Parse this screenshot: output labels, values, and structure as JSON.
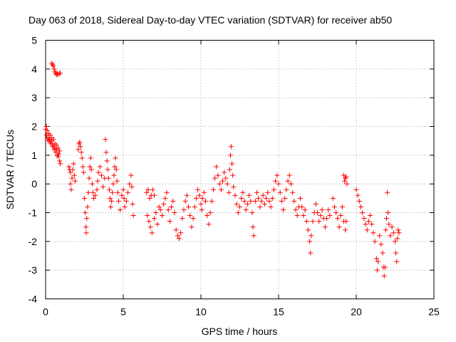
{
  "chart_data": {
    "type": "scatter",
    "title": "Day 063 of 2018, Sidereal Day-to-day VTEC variation (SDTVAR) for receiver ab50",
    "xlabel": "GPS time / hours",
    "ylabel": "SDTVAR / TECUs",
    "xlim": [
      0,
      25
    ],
    "ylim": [
      -4,
      5
    ],
    "x_ticks": [
      0,
      5,
      10,
      15,
      20,
      25
    ],
    "y_ticks": [
      -4,
      -3,
      -2,
      -1,
      0,
      1,
      2,
      3,
      4,
      5
    ],
    "x_tick_labels": [
      "0",
      "5",
      "10",
      "15",
      "20",
      "25"
    ],
    "y_tick_labels": [
      "-4",
      "-3",
      "-2",
      "-1",
      "0",
      "1",
      "2",
      "3",
      "4",
      "5"
    ],
    "grid": true,
    "marker": "+",
    "color": "#ff0000",
    "series": [
      {
        "name": "SDTVAR",
        "points": [
          [
            0.0,
            1.9
          ],
          [
            0.05,
            1.7
          ],
          [
            0.1,
            1.6
          ],
          [
            0.15,
            1.5
          ],
          [
            0.2,
            1.6
          ],
          [
            0.25,
            1.55
          ],
          [
            0.3,
            1.45
          ],
          [
            0.35,
            1.4
          ],
          [
            0.4,
            1.5
          ],
          [
            0.45,
            1.3
          ],
          [
            0.5,
            1.35
          ],
          [
            0.55,
            1.2
          ],
          [
            0.6,
            1.25
          ],
          [
            0.65,
            1.1
          ],
          [
            0.7,
            1.2
          ],
          [
            0.75,
            1.0
          ],
          [
            0.8,
            0.95
          ],
          [
            0.85,
            1.05
          ],
          [
            0.9,
            0.8
          ],
          [
            0.95,
            0.7
          ],
          [
            0.05,
            2.0
          ],
          [
            0.1,
            1.85
          ],
          [
            0.2,
            1.75
          ],
          [
            0.3,
            1.7
          ],
          [
            0.4,
            1.6
          ],
          [
            0.5,
            1.55
          ],
          [
            0.6,
            1.4
          ],
          [
            0.7,
            1.35
          ],
          [
            0.8,
            1.25
          ],
          [
            0.9,
            1.15
          ],
          [
            0.4,
            4.2
          ],
          [
            0.45,
            4.15
          ],
          [
            0.5,
            4.1
          ],
          [
            0.55,
            4.0
          ],
          [
            0.6,
            3.9
          ],
          [
            0.65,
            3.85
          ],
          [
            0.7,
            3.8
          ],
          [
            0.75,
            3.85
          ],
          [
            0.8,
            3.8
          ],
          [
            0.9,
            3.85
          ],
          [
            0.95,
            3.85
          ],
          [
            1.5,
            0.6
          ],
          [
            1.55,
            0.5
          ],
          [
            1.6,
            0.4
          ],
          [
            1.6,
            0.0
          ],
          [
            1.65,
            -0.2
          ],
          [
            1.7,
            0.2
          ],
          [
            1.75,
            0.5
          ],
          [
            1.8,
            0.7
          ],
          [
            1.85,
            0.3
          ],
          [
            1.9,
            0.1
          ],
          [
            2.1,
            1.2
          ],
          [
            2.15,
            1.4
          ],
          [
            2.2,
            1.45
          ],
          [
            2.25,
            1.3
          ],
          [
            2.3,
            1.1
          ],
          [
            2.35,
            0.9
          ],
          [
            2.4,
            0.6
          ],
          [
            2.45,
            0.4
          ],
          [
            2.5,
            -0.5
          ],
          [
            2.55,
            -1.0
          ],
          [
            2.6,
            -1.5
          ],
          [
            2.62,
            -1.7
          ],
          [
            2.65,
            -1.2
          ],
          [
            2.7,
            -0.8
          ],
          [
            2.75,
            -0.3
          ],
          [
            2.8,
            0.2
          ],
          [
            2.85,
            0.6
          ],
          [
            2.9,
            0.9
          ],
          [
            2.95,
            0.5
          ],
          [
            3.0,
            0.0
          ],
          [
            3.05,
            -0.3
          ],
          [
            3.1,
            -0.5
          ],
          [
            3.2,
            -0.4
          ],
          [
            3.3,
            -0.2
          ],
          [
            3.35,
            0.1
          ],
          [
            3.4,
            0.4
          ],
          [
            3.5,
            0.6
          ],
          [
            3.6,
            0.3
          ],
          [
            3.7,
            -0.1
          ],
          [
            3.8,
            0.2
          ],
          [
            3.85,
            1.55
          ],
          [
            3.9,
            1.1
          ],
          [
            3.95,
            0.8
          ],
          [
            4.0,
            0.5
          ],
          [
            4.05,
            0.2
          ],
          [
            4.1,
            -0.2
          ],
          [
            4.15,
            -0.5
          ],
          [
            4.2,
            -0.8
          ],
          [
            4.25,
            -0.6
          ],
          [
            4.3,
            -0.3
          ],
          [
            4.35,
            0.0
          ],
          [
            4.4,
            0.3
          ],
          [
            4.45,
            0.6
          ],
          [
            4.5,
            0.9
          ],
          [
            4.55,
            0.5
          ],
          [
            4.6,
            0.1
          ],
          [
            4.65,
            -0.3
          ],
          [
            4.7,
            -0.6
          ],
          [
            4.8,
            -0.9
          ],
          [
            4.9,
            -0.4
          ],
          [
            5.0,
            -0.2
          ],
          [
            5.05,
            -0.5
          ],
          [
            5.1,
            -0.8
          ],
          [
            5.2,
            -0.6
          ],
          [
            5.3,
            -0.3
          ],
          [
            5.4,
            0.0
          ],
          [
            5.5,
            0.3
          ],
          [
            5.55,
            -0.1
          ],
          [
            5.6,
            -0.7
          ],
          [
            5.65,
            -1.1
          ],
          [
            6.5,
            -0.3
          ],
          [
            6.6,
            -0.2
          ],
          [
            6.7,
            -0.5
          ],
          [
            6.8,
            -0.4
          ],
          [
            6.9,
            -0.2
          ],
          [
            7.0,
            -0.4
          ],
          [
            6.55,
            -1.1
          ],
          [
            6.65,
            -1.3
          ],
          [
            6.75,
            -1.5
          ],
          [
            6.85,
            -1.7
          ],
          [
            7.0,
            -1.2
          ],
          [
            7.1,
            -1.0
          ],
          [
            7.2,
            -1.4
          ],
          [
            7.3,
            -0.8
          ],
          [
            7.4,
            -0.9
          ],
          [
            7.5,
            -1.1
          ],
          [
            7.6,
            -0.7
          ],
          [
            7.7,
            -0.5
          ],
          [
            7.8,
            -0.3
          ],
          [
            7.9,
            -0.9
          ],
          [
            8.0,
            -1.3
          ],
          [
            8.1,
            -0.8
          ],
          [
            8.2,
            -0.6
          ],
          [
            8.3,
            -1.0
          ],
          [
            8.4,
            -1.6
          ],
          [
            8.5,
            -1.8
          ],
          [
            8.6,
            -1.9
          ],
          [
            8.7,
            -1.7
          ],
          [
            8.8,
            -1.2
          ],
          [
            8.9,
            -0.9
          ],
          [
            9.0,
            -0.6
          ],
          [
            9.1,
            -0.4
          ],
          [
            9.2,
            -0.8
          ],
          [
            9.3,
            -1.1
          ],
          [
            9.4,
            -1.5
          ],
          [
            9.5,
            -1.2
          ],
          [
            9.6,
            -0.8
          ],
          [
            9.7,
            -0.5
          ],
          [
            9.8,
            -0.2
          ],
          [
            9.9,
            -0.4
          ],
          [
            10.0,
            -0.7
          ],
          [
            10.05,
            -0.9
          ],
          [
            10.1,
            -0.5
          ],
          [
            10.2,
            -0.3
          ],
          [
            10.3,
            -0.6
          ],
          [
            10.4,
            -1.1
          ],
          [
            10.5,
            -1.4
          ],
          [
            10.6,
            -1.0
          ],
          [
            10.7,
            -0.6
          ],
          [
            10.8,
            -0.2
          ],
          [
            10.9,
            0.2
          ],
          [
            11.0,
            0.6
          ],
          [
            11.1,
            0.3
          ],
          [
            11.2,
            0.0
          ],
          [
            11.3,
            -0.2
          ],
          [
            11.4,
            0.1
          ],
          [
            11.5,
            0.4
          ],
          [
            11.6,
            0.2
          ],
          [
            11.7,
            0.0
          ],
          [
            11.8,
            -0.3
          ],
          [
            11.85,
            0.5
          ],
          [
            11.9,
            1.0
          ],
          [
            11.95,
            1.3
          ],
          [
            12.0,
            0.7
          ],
          [
            12.05,
            0.3
          ],
          [
            12.1,
            -0.1
          ],
          [
            12.2,
            -0.4
          ],
          [
            12.3,
            -0.7
          ],
          [
            12.4,
            -1.0
          ],
          [
            12.5,
            -0.8
          ],
          [
            12.6,
            -0.5
          ],
          [
            12.7,
            -0.3
          ],
          [
            12.8,
            -0.6
          ],
          [
            12.9,
            -0.9
          ],
          [
            13.0,
            -0.7
          ],
          [
            13.1,
            -0.4
          ],
          [
            13.2,
            -0.6
          ],
          [
            13.3,
            -1.0
          ],
          [
            13.35,
            -1.5
          ],
          [
            13.4,
            -1.8
          ],
          [
            13.5,
            -0.6
          ],
          [
            13.6,
            -0.3
          ],
          [
            13.7,
            -0.5
          ],
          [
            13.8,
            -0.8
          ],
          [
            13.9,
            -0.6
          ],
          [
            14.0,
            -0.4
          ],
          [
            14.1,
            -0.7
          ],
          [
            14.2,
            -0.5
          ],
          [
            14.3,
            -0.3
          ],
          [
            14.4,
            -0.6
          ],
          [
            14.5,
            -0.8
          ],
          [
            14.6,
            -0.5
          ],
          [
            14.7,
            -0.2
          ],
          [
            14.8,
            0.1
          ],
          [
            14.9,
            0.3
          ],
          [
            15.0,
            0.0
          ],
          [
            15.1,
            -0.3
          ],
          [
            15.2,
            -0.6
          ],
          [
            15.3,
            -0.9
          ],
          [
            15.4,
            -0.5
          ],
          [
            15.5,
            -0.2
          ],
          [
            15.6,
            0.1
          ],
          [
            15.7,
            0.3
          ],
          [
            15.8,
            0.0
          ],
          [
            15.9,
            -0.3
          ],
          [
            16.0,
            -0.6
          ],
          [
            16.1,
            -0.9
          ],
          [
            16.2,
            -1.1
          ],
          [
            16.3,
            -0.8
          ],
          [
            16.4,
            -0.5
          ],
          [
            16.5,
            -0.8
          ],
          [
            16.6,
            -1.1
          ],
          [
            16.7,
            -0.9
          ],
          [
            16.8,
            -1.3
          ],
          [
            16.9,
            -1.6
          ],
          [
            17.0,
            -2.0
          ],
          [
            17.05,
            -2.4
          ],
          [
            17.1,
            -1.8
          ],
          [
            17.2,
            -1.3
          ],
          [
            17.3,
            -1.0
          ],
          [
            17.4,
            -0.7
          ],
          [
            17.5,
            -1.0
          ],
          [
            17.6,
            -1.3
          ],
          [
            17.7,
            -1.1
          ],
          [
            17.8,
            -0.9
          ],
          [
            17.9,
            -1.2
          ],
          [
            18.0,
            -1.5
          ],
          [
            18.1,
            -1.2
          ],
          [
            18.2,
            -0.9
          ],
          [
            18.3,
            -1.1
          ],
          [
            18.5,
            -0.5
          ],
          [
            18.6,
            -0.8
          ],
          [
            18.7,
            -1.0
          ],
          [
            18.8,
            -1.2
          ],
          [
            18.9,
            -1.5
          ],
          [
            19.0,
            -1.1
          ],
          [
            19.1,
            -0.8
          ],
          [
            19.2,
            -1.3
          ],
          [
            19.3,
            -1.6
          ],
          [
            19.35,
            -1.3
          ],
          [
            19.2,
            0.3
          ],
          [
            19.3,
            0.2
          ],
          [
            19.4,
            0.0
          ],
          [
            19.25,
            0.1
          ],
          [
            19.35,
            0.25
          ],
          [
            20.0,
            -0.2
          ],
          [
            20.1,
            -0.4
          ],
          [
            20.2,
            -0.6
          ],
          [
            20.3,
            -0.8
          ],
          [
            20.4,
            -1.0
          ],
          [
            20.5,
            -1.2
          ],
          [
            20.6,
            -1.4
          ],
          [
            20.7,
            -1.6
          ],
          [
            20.8,
            -1.3
          ],
          [
            20.9,
            -1.1
          ],
          [
            21.0,
            -1.4
          ],
          [
            21.1,
            -1.7
          ],
          [
            21.2,
            -2.0
          ],
          [
            21.3,
            -2.6
          ],
          [
            21.35,
            -3.0
          ],
          [
            21.4,
            -2.7
          ],
          [
            21.5,
            -1.8
          ],
          [
            21.6,
            -2.1
          ],
          [
            21.7,
            -2.4
          ],
          [
            21.75,
            -2.9
          ],
          [
            21.8,
            -3.2
          ],
          [
            21.85,
            -2.9
          ],
          [
            21.9,
            -1.6
          ],
          [
            21.95,
            -1.2
          ],
          [
            22.0,
            -0.3
          ],
          [
            22.05,
            -1.0
          ],
          [
            22.1,
            -1.4
          ],
          [
            22.2,
            -1.8
          ],
          [
            22.3,
            -1.5
          ],
          [
            22.4,
            -1.7
          ],
          [
            22.5,
            -2.0
          ],
          [
            22.55,
            -2.4
          ],
          [
            22.6,
            -2.7
          ],
          [
            22.65,
            -1.9
          ],
          [
            22.7,
            -1.6
          ],
          [
            22.75,
            -1.7
          ]
        ]
      }
    ]
  }
}
